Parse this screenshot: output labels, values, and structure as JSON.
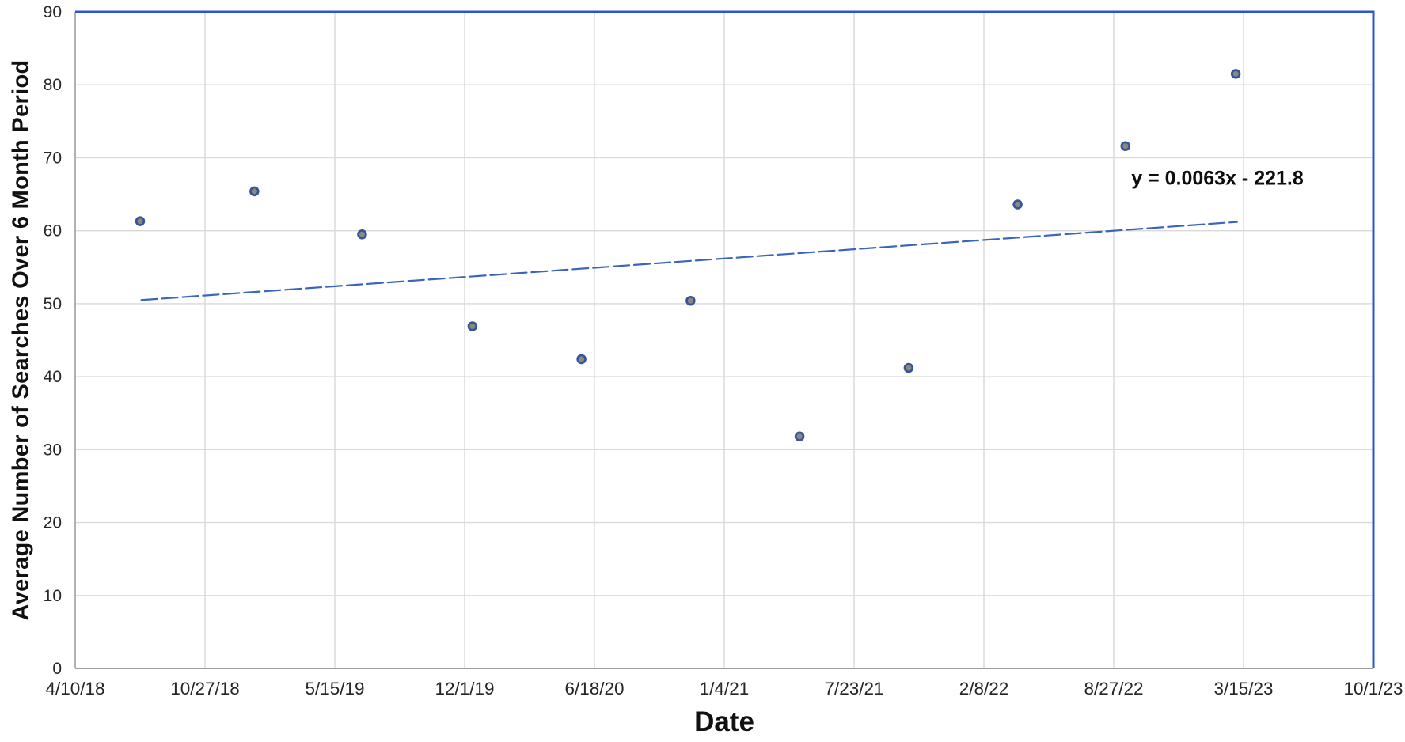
{
  "chart_data": {
    "type": "scatter",
    "title": "",
    "xlabel": "Date",
    "ylabel": "Average Number of Searches Over 6 Month Period",
    "x_tick_labels": [
      "4/10/18",
      "10/27/18",
      "5/15/19",
      "12/1/19",
      "6/18/20",
      "1/4/21",
      "7/23/21",
      "2/8/22",
      "8/27/22",
      "3/15/23",
      "10/1/23"
    ],
    "x_axis_note": "ticks are evenly spaced dates, 200 days apart; x_tick_pos below is measured in tick intervals from 4/10/18",
    "y_ticks": [
      0,
      10,
      20,
      30,
      40,
      50,
      60,
      70,
      80,
      90
    ],
    "ylim": [
      0,
      90
    ],
    "grid": true,
    "legend": "none",
    "points": [
      {
        "x_tick_pos": 0.5,
        "date_est": "7/19/18",
        "y": 61.3
      },
      {
        "x_tick_pos": 1.38,
        "date_est": "1/11/19",
        "y": 65.4
      },
      {
        "x_tick_pos": 2.21,
        "date_est": "6/26/19",
        "y": 59.5
      },
      {
        "x_tick_pos": 3.06,
        "date_est": "12/13/19",
        "y": 46.9
      },
      {
        "x_tick_pos": 3.9,
        "date_est": "5/29/20",
        "y": 42.4
      },
      {
        "x_tick_pos": 4.74,
        "date_est": "11/13/20",
        "y": 50.4
      },
      {
        "x_tick_pos": 5.58,
        "date_est": "5/1/21",
        "y": 31.8
      },
      {
        "x_tick_pos": 6.42,
        "date_est": "10/16/21",
        "y": 41.2
      },
      {
        "x_tick_pos": 7.26,
        "date_est": "4/1/22",
        "y": 63.6
      },
      {
        "x_tick_pos": 8.09,
        "date_est": "9/14/22",
        "y": 71.6
      },
      {
        "x_tick_pos": 8.94,
        "date_est": "3/3/23",
        "y": 81.5
      }
    ],
    "trendline": {
      "equation": "y = 0.0063x - 221.8",
      "style": "dashed",
      "x_start_tick_pos": 0.51,
      "y_start": 50.5,
      "x_end_tick_pos": 8.95,
      "y_end": 61.2
    }
  },
  "colors": {
    "border_blue": "#2e55cb",
    "trendline_blue": "#3a64c0",
    "marker_stroke": "#33559e",
    "marker_fill": "#8e877c",
    "gridline": "#d9d9d9",
    "axis_line": "#9e9e9e",
    "tick_text": "#262626"
  }
}
